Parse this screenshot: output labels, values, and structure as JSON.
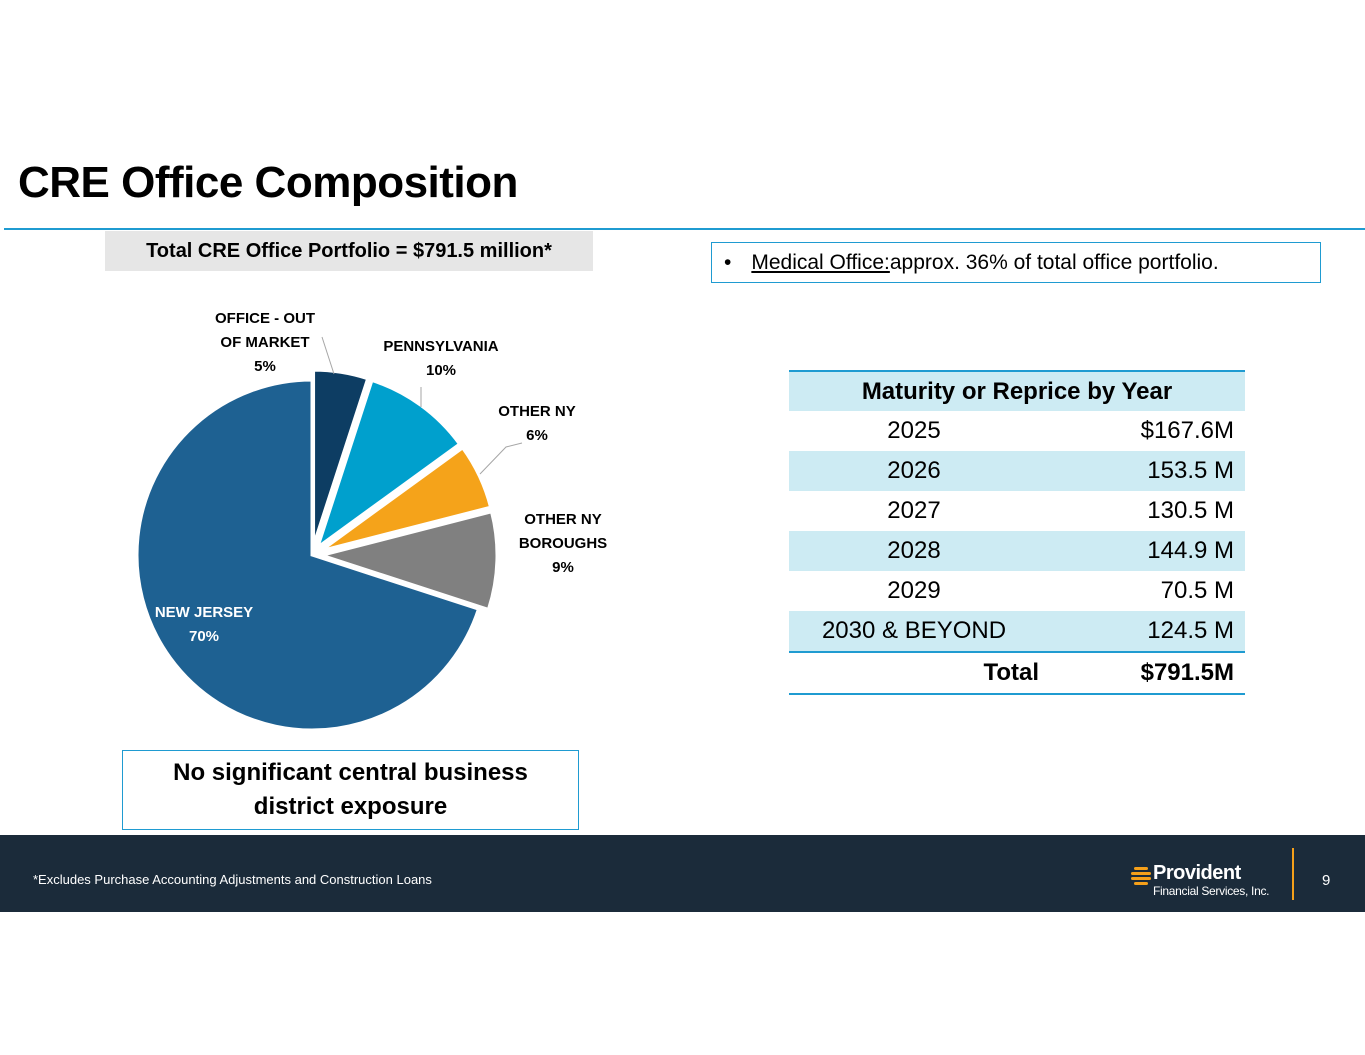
{
  "page": {
    "title": "CRE Office Composition",
    "page_number": "9"
  },
  "total_label": "Total CRE Office Portfolio = $791.5 million*",
  "medical_note": {
    "bullet": "•",
    "label": "Medical Office: ",
    "text": "approx. 36% of total office portfolio."
  },
  "cbd_note": "No significant central business district exposure",
  "chart_data": {
    "type": "pie",
    "title": "Total CRE Office Portfolio = $791.5 million*",
    "slices": [
      {
        "lines": [
          "OFFICE - OUT",
          "OF MARKET"
        ],
        "value": 5,
        "pct_label": "5%",
        "color": "#0d3d63"
      },
      {
        "lines": [
          "PENNSYLVANIA"
        ],
        "value": 10,
        "pct_label": "10%",
        "color": "#00a0cd"
      },
      {
        "lines": [
          "OTHER NY"
        ],
        "value": 6,
        "pct_label": "6%",
        "color": "#f5a31a"
      },
      {
        "lines": [
          "OTHER NY",
          "BOROUGHS"
        ],
        "value": 9,
        "pct_label": "9%",
        "color": "#808080"
      },
      {
        "lines": [
          "NEW JERSEY"
        ],
        "value": 70,
        "pct_label": "70%",
        "color": "#1e6192"
      }
    ]
  },
  "maturity_table": {
    "header": "Maturity or Reprice by Year",
    "rows": [
      {
        "year": "2025",
        "value": "$167.6M"
      },
      {
        "year": "2026",
        "value": "153.5 M"
      },
      {
        "year": "2027",
        "value": "130.5 M"
      },
      {
        "year": "2028",
        "value": "144.9 M"
      },
      {
        "year": "2029",
        "value": "70.5 M"
      },
      {
        "year": "2030 & BEYOND",
        "value": "124.5 M"
      }
    ],
    "total_label": "Total",
    "total_value": "$791.5M"
  },
  "footer": {
    "footnote": "*Excludes Purchase Accounting Adjustments and Construction Loans",
    "logo_name": "Provident",
    "logo_sub": "Financial Services, Inc."
  }
}
